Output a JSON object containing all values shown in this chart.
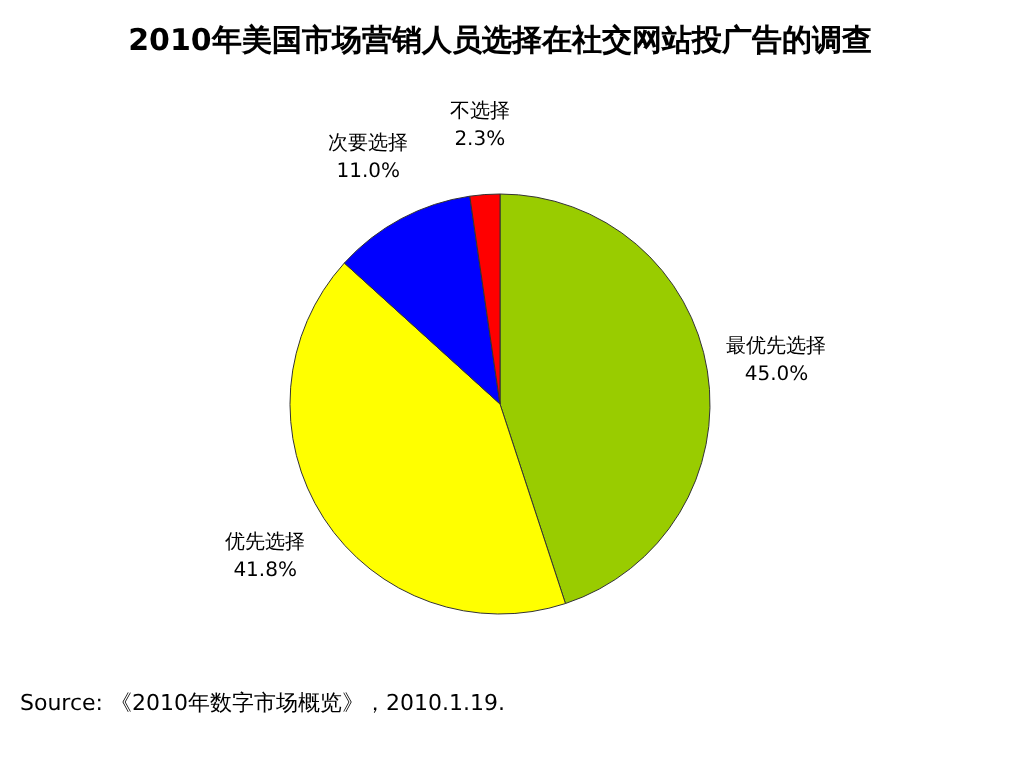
{
  "chart_data": {
    "type": "pie",
    "title": "2010年美国市场营销人员选择在社交网站投广告的调查",
    "categories": [
      "最优先选择",
      "优先选择",
      "次要选择",
      "不选择"
    ],
    "values": [
      45.0,
      41.8,
      11.0,
      2.3
    ],
    "colors": [
      "#99cc00",
      "#ffff00",
      "#0000ff",
      "#ff0000"
    ],
    "value_labels": [
      "45.0%",
      "41.8%",
      "11.0%",
      "2.3%"
    ],
    "legend": false,
    "annotations": [
      "Source:   《2010年数字市场概览》，2010.1.19."
    ]
  }
}
